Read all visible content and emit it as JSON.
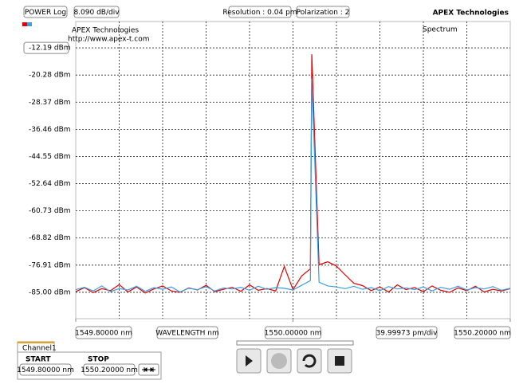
{
  "header": {
    "mode": "POWER Log",
    "scale": "8.090 dB/div",
    "resolution": "Resolution : 0.04 pm",
    "polarization": "Polarization : 2",
    "brand": "APEX Technologies"
  },
  "chart_data": {
    "type": "line",
    "watermark": [
      "APEX Technologies",
      "http://www.apex-t.com"
    ],
    "title": "Spectrum",
    "x_label": "WAVELENGTH nm",
    "x_division_label": "39.99973 pm/div",
    "x": [
      1549.8,
      1549.808,
      1549.816,
      1549.824,
      1549.832,
      1549.84,
      1549.848,
      1549.856,
      1549.864,
      1549.872,
      1549.88,
      1549.888,
      1549.896,
      1549.904,
      1549.912,
      1549.92,
      1549.928,
      1549.936,
      1549.944,
      1549.952,
      1549.96,
      1549.968,
      1549.976,
      1549.984,
      1549.992,
      1550.0,
      1550.008,
      1550.016,
      1550.0173,
      1550.024,
      1550.032,
      1550.04,
      1550.048,
      1550.056,
      1550.064,
      1550.072,
      1550.08,
      1550.088,
      1550.096,
      1550.104,
      1550.112,
      1550.12,
      1550.128,
      1550.136,
      1550.144,
      1550.152,
      1550.16,
      1550.168,
      1550.176,
      1550.184,
      1550.192,
      1550.2
    ],
    "series": [
      {
        "color": "#e00000",
        "values": [
          -84.8,
          -83.6,
          -85.1,
          -83.9,
          -84.5,
          -82.7,
          -84.9,
          -83.4,
          -85.2,
          -84.0,
          -83.1,
          -84.6,
          -85.0,
          -83.7,
          -84.3,
          -82.9,
          -84.8,
          -84.1,
          -83.5,
          -84.7,
          -82.8,
          -84.4,
          -83.9,
          -84.6,
          -77.3,
          -84.2,
          -80.1,
          -78.0,
          -14.1,
          -76.8,
          -75.9,
          -77.2,
          -79.8,
          -82.3,
          -83.0,
          -84.5,
          -83.4,
          -84.9,
          -82.8,
          -84.2,
          -83.6,
          -84.8,
          -83.1,
          -84.4,
          -85.0,
          -83.7,
          -84.5,
          -83.2,
          -84.9,
          -84.1,
          -84.6,
          -83.9
        ]
      },
      {
        "color": "#3a9ee0",
        "values": [
          -84.2,
          -83.5,
          -84.6,
          -83.1,
          -84.8,
          -83.9,
          -84.3,
          -83.2,
          -84.7,
          -83.6,
          -84.1,
          -83.4,
          -84.9,
          -83.8,
          -84.2,
          -83.3,
          -84.6,
          -83.7,
          -84.0,
          -83.5,
          -84.4,
          -83.2,
          -84.1,
          -83.6,
          -83.8,
          -84.3,
          -82.9,
          -81.5,
          -21.3,
          -82.0,
          -83.1,
          -83.4,
          -83.9,
          -83.2,
          -84.1,
          -83.6,
          -84.5,
          -83.3,
          -84.0,
          -83.7,
          -84.2,
          -83.4,
          -84.6,
          -83.5,
          -84.1,
          -83.2,
          -84.3,
          -83.6,
          -84.0,
          -83.3,
          -84.4,
          -83.8
        ]
      }
    ],
    "xlim": [
      1549.8,
      1550.2
    ],
    "xticks": [
      {
        "value": 1549.8,
        "label": "1549.80000 nm"
      },
      {
        "value": 1550.0,
        "label": "1550.00000 nm"
      },
      {
        "value": 1550.2,
        "label": "1550.20000 nm"
      }
    ],
    "ylim": [
      -92.85,
      -4.34
    ],
    "yticks": [
      {
        "value": -12.19,
        "label": "-12.19 dBm"
      },
      {
        "value": -20.28,
        "label": "-20.28 dBm"
      },
      {
        "value": -28.37,
        "label": "-28.37 dBm"
      },
      {
        "value": -36.46,
        "label": "-36.46 dBm"
      },
      {
        "value": -44.55,
        "label": "-44.55 dBm"
      },
      {
        "value": -52.64,
        "label": "-52.64 dBm"
      },
      {
        "value": -60.73,
        "label": "-60.73 dBm"
      },
      {
        "value": -68.82,
        "label": "-68.82 dBm"
      },
      {
        "value": -76.91,
        "label": "-76.91 dBm"
      },
      {
        "value": -85.0,
        "label": "-85.00 dBm"
      }
    ],
    "grid": true
  },
  "channel_panel": {
    "tab": "Channel1",
    "start_label": "START",
    "stop_label": "STOP",
    "start_value": "1549.80000 nm",
    "stop_value": "1550.20000 nm"
  }
}
